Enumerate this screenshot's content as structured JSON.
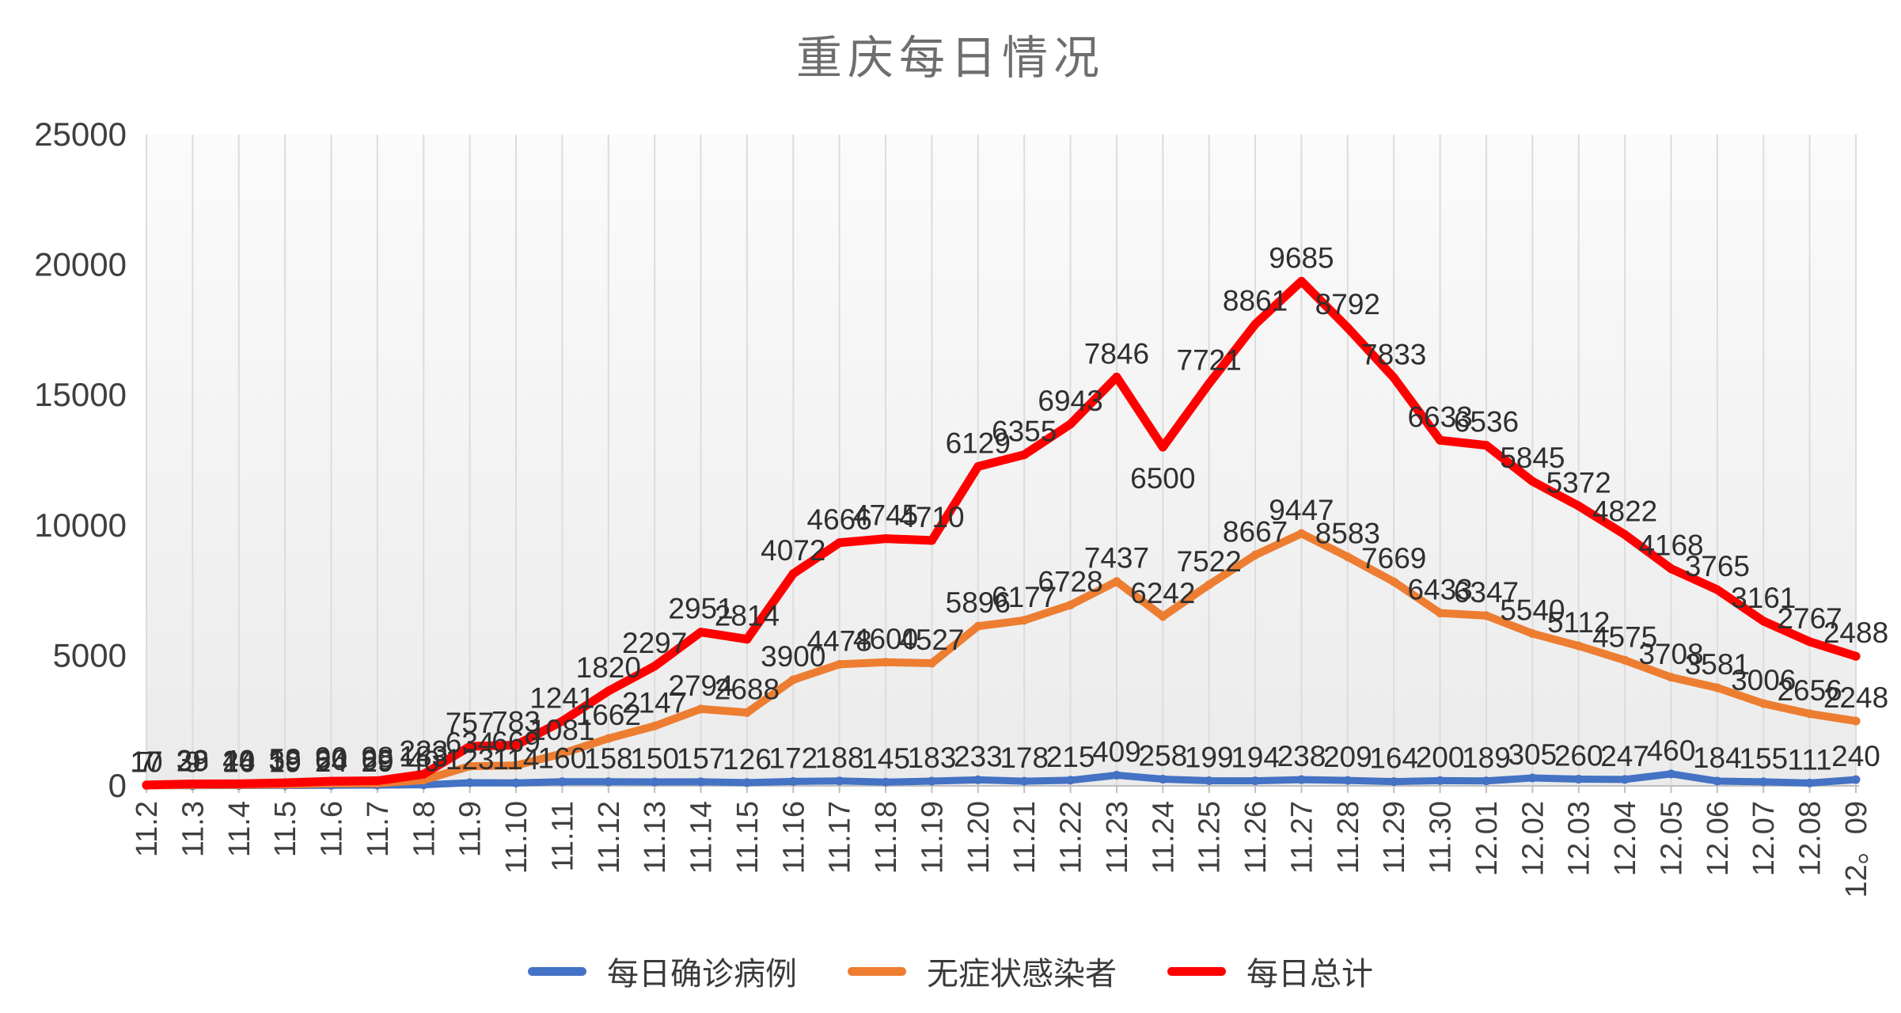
{
  "title": "重庆每日情况",
  "chart_data": {
    "type": "line",
    "stacked": true,
    "title": "重庆每日情况",
    "xlabel": "",
    "ylabel": "",
    "ylim": [
      0,
      25000
    ],
    "yticks": [
      0,
      5000,
      10000,
      15000,
      20000,
      25000
    ],
    "grid": "vertical",
    "legend_position": "bottom",
    "categories": [
      "11.2",
      "11.3",
      "11.4",
      "11.5",
      "11.6",
      "11.7",
      "11.8",
      "11.9",
      "11.10",
      "11.11",
      "11.12",
      "11.13",
      "11.14",
      "11.15",
      "11.16",
      "11.17",
      "11.18",
      "11.19",
      "11.20",
      "11.21",
      "11.22",
      "11.23",
      "11.24",
      "11.25",
      "11.26",
      "11.27",
      "11.28",
      "11.29",
      "11.30",
      "12.01",
      "12.02",
      "12.03",
      "12.04",
      "12.05",
      "12.06",
      "12.07",
      "12.08",
      "12。09"
    ],
    "series": [
      {
        "name": "每日确诊病例",
        "color": "#4472C4",
        "values": [
          10,
          9,
          16,
          19,
          24,
          29,
          40,
          123,
          114,
          160,
          158,
          150,
          157,
          126,
          172,
          188,
          145,
          183,
          233,
          178,
          215,
          409,
          258,
          199,
          194,
          238,
          209,
          164,
          200,
          189,
          305,
          260,
          247,
          460,
          184,
          155,
          111,
          240
        ]
      },
      {
        "name": "无症状感染者",
        "color": "#ED7D31",
        "values": [
          7,
          29,
          24,
          39,
          66,
          69,
          183,
          634,
          669,
          1081,
          1662,
          2147,
          2794,
          2688,
          3900,
          4478,
          4600,
          4527,
          5896,
          6177,
          6728,
          7437,
          6242,
          7522,
          8667,
          9447,
          8583,
          7669,
          6433,
          6347,
          5540,
          5112,
          4575,
          3708,
          3581,
          3006,
          2656,
          2248
        ]
      },
      {
        "name": "每日总计",
        "color": "#FF0000",
        "values": [
          17,
          38,
          40,
          58,
          90,
          98,
          223,
          757,
          783,
          1241,
          1820,
          2297,
          2951,
          2814,
          4072,
          4666,
          4745,
          4710,
          6129,
          6355,
          6943,
          7846,
          6500,
          7721,
          8861,
          9685,
          8792,
          7833,
          6633,
          6536,
          5845,
          5372,
          4822,
          4168,
          3765,
          3161,
          2767,
          2488
        ]
      }
    ]
  }
}
